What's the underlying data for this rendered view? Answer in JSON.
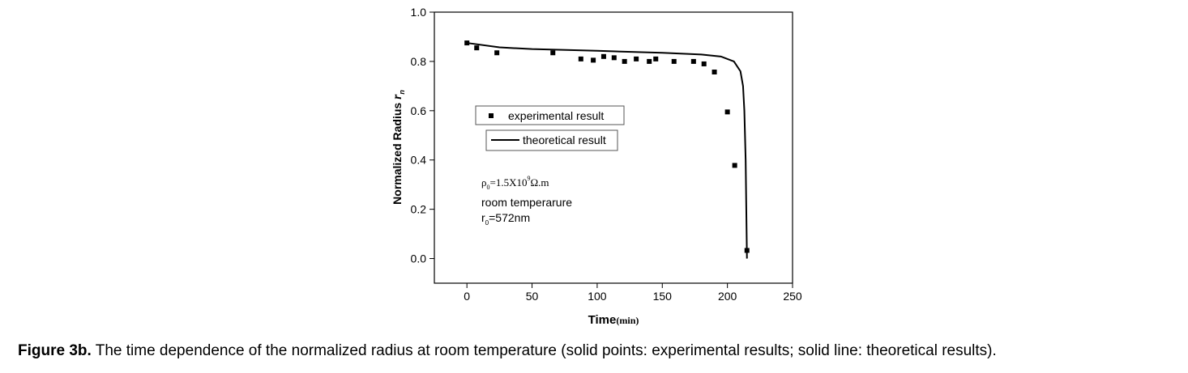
{
  "chart_data": {
    "type": "scatter",
    "xlabel": [
      "Time",
      "(min)"
    ],
    "ylabel": [
      "Normalized Radius ",
      "r",
      "n"
    ],
    "xlim": [
      -25,
      250
    ],
    "xticks": [
      0,
      50,
      100,
      150,
      200,
      250
    ],
    "ylim": [
      -0.1,
      1.0
    ],
    "yticks": [
      {
        "value": 0,
        "label": "0.0"
      },
      0.2,
      0.4,
      0.6,
      0.8,
      {
        "value": 1,
        "label": "1.0"
      }
    ],
    "series": [
      {
        "name": "experimental result",
        "type": "scatter",
        "color": "#000000",
        "x": [
          0,
          7.5,
          23,
          66,
          87.5,
          97,
          105,
          113,
          121,
          130,
          140,
          145,
          159,
          174,
          182,
          190,
          200,
          205.6,
          215
        ],
        "values": [
          0.875,
          0.855,
          0.835,
          0.835,
          0.81,
          0.805,
          0.82,
          0.815,
          0.8,
          0.81,
          0.8,
          0.81,
          0.8,
          0.8,
          0.79,
          0.757,
          0.595,
          0.378,
          0.033
        ]
      },
      {
        "name": "theoretical result",
        "type": "line",
        "color": "#000000",
        "x": [
          0,
          25,
          50,
          100,
          150,
          180,
          195,
          205,
          210,
          212,
          213,
          214,
          214.5,
          215
        ],
        "values": [
          0.875,
          0.857,
          0.85,
          0.843,
          0.835,
          0.828,
          0.82,
          0.8,
          0.76,
          0.7,
          0.6,
          0.4,
          0.2,
          0
        ]
      }
    ],
    "annotations": [
      [
        "ρ",
        "0",
        "=1.5X10",
        "9",
        "Ω.m"
      ],
      [
        "room temperarure"
      ],
      [
        "r",
        "0",
        "=572nm"
      ]
    ]
  },
  "caption": {
    "label": "Figure 3b.",
    "text": " The time dependence of the normalized radius at room temperature (solid points: experimental results; solid line: theoretical results)."
  }
}
